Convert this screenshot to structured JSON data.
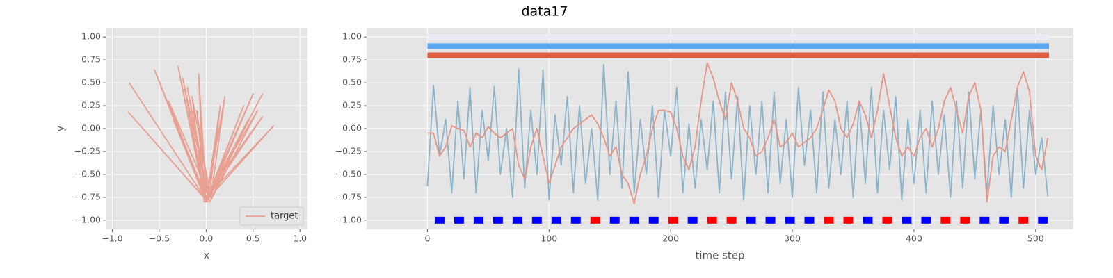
{
  "title": "data17",
  "chart_data": [
    {
      "type": "line",
      "xlabel": "x",
      "ylabel": "y",
      "legend": "lower right",
      "grid": true,
      "xlim": [
        -1.07,
        1.08
      ],
      "ylim": [
        -1.1,
        1.1
      ],
      "xticks": [
        {
          "value": -1.0,
          "label": "−1.0"
        },
        {
          "value": -0.5,
          "label": "−0.5"
        },
        {
          "value": 0.0,
          "label": "0.0"
        },
        {
          "value": 0.5,
          "label": "0.5"
        },
        {
          "value": 1.0,
          "label": "1.0"
        }
      ],
      "yticks": [
        {
          "value": 1.0,
          "label": "1.00"
        },
        {
          "value": 0.75,
          "label": "0.75"
        },
        {
          "value": 0.5,
          "label": "0.50"
        },
        {
          "value": 0.25,
          "label": "0.25"
        },
        {
          "value": 0.0,
          "label": "0.00"
        },
        {
          "value": -0.25,
          "label": "−0.25"
        },
        {
          "value": -0.5,
          "label": "−0.50"
        },
        {
          "value": -0.75,
          "label": "−0.75"
        },
        {
          "value": -1.0,
          "label": "−1.00"
        }
      ],
      "series": [
        {
          "name": "target",
          "color": "#e8a092",
          "style": "line",
          "x": [
            -0.82,
            0.0,
            -0.83,
            0.02,
            -0.55,
            -0.02,
            -0.3,
            0.0,
            -0.25,
            0.03,
            -0.2,
            0.0,
            -0.08,
            -0.02,
            -0.15,
            0.05,
            0.2,
            0.0,
            0.6,
            0.02,
            0.5,
            -0.01,
            0.72,
            0.0,
            0.55,
            0.04,
            0.45,
            0.0,
            0.6,
            0.02,
            -0.4,
            0.0,
            -0.1,
            0.03,
            0.15,
            0.0,
            -0.35,
            0.01,
            0.4,
            0.0
          ],
          "values": [
            0.5,
            -0.78,
            0.18,
            -0.8,
            0.64,
            -0.75,
            0.68,
            -0.8,
            0.55,
            -0.78,
            0.45,
            -0.7,
            0.6,
            -0.8,
            0.35,
            -0.75,
            0.35,
            -0.8,
            0.38,
            -0.78,
            0.38,
            -0.8,
            0.03,
            -0.75,
            0.2,
            -0.8,
            0.1,
            -0.78,
            0.13,
            -0.7,
            0.3,
            -0.8,
            0.2,
            -0.78,
            0.25,
            -0.8,
            0.1,
            -0.76,
            0.25,
            -0.8
          ]
        }
      ]
    },
    {
      "type": "line",
      "xlabel": "time step",
      "grid": true,
      "xlim": [
        -50,
        531
      ],
      "ylim": [
        -1.1,
        1.1
      ],
      "xticks": [
        0,
        100,
        200,
        300,
        400,
        500
      ],
      "yticks": [
        {
          "value": 1.0,
          "label": "1.00"
        },
        {
          "value": 0.75,
          "label": "0.75"
        },
        {
          "value": 0.5,
          "label": "0.50"
        },
        {
          "value": 0.25,
          "label": "0.25"
        },
        {
          "value": 0.0,
          "label": "0.00"
        },
        {
          "value": -0.25,
          "label": "−0.25"
        },
        {
          "value": -0.5,
          "label": "−0.50"
        },
        {
          "value": -0.75,
          "label": "−0.75"
        },
        {
          "value": -1.0,
          "label": "−1.00"
        }
      ],
      "x": [
        0,
        5,
        10,
        15,
        20,
        25,
        30,
        35,
        40,
        45,
        50,
        55,
        60,
        65,
        70,
        75,
        80,
        85,
        90,
        95,
        100,
        105,
        110,
        115,
        120,
        125,
        130,
        135,
        140,
        145,
        150,
        155,
        160,
        165,
        170,
        175,
        180,
        185,
        190,
        195,
        200,
        205,
        210,
        215,
        220,
        225,
        230,
        235,
        240,
        245,
        250,
        255,
        260,
        265,
        270,
        275,
        280,
        285,
        290,
        295,
        300,
        305,
        310,
        315,
        320,
        325,
        330,
        335,
        340,
        345,
        350,
        355,
        360,
        365,
        370,
        375,
        380,
        385,
        390,
        395,
        400,
        405,
        410,
        415,
        420,
        425,
        430,
        435,
        440,
        445,
        450,
        455,
        460,
        465,
        470,
        475,
        480,
        485,
        490,
        495,
        500,
        505,
        510
      ],
      "series": [
        {
          "color": "#ebebf5",
          "style": "band",
          "x": [
            0,
            511
          ],
          "values": [
            1.0,
            1.0
          ]
        },
        {
          "color": "#5ca8f0",
          "style": "band",
          "x": [
            0,
            511
          ],
          "values": [
            0.9,
            0.9
          ]
        },
        {
          "color": "#e05a3e",
          "style": "band",
          "x": [
            0,
            511
          ],
          "values": [
            0.8,
            0.8
          ]
        },
        {
          "color": "#8ab4cc",
          "style": "line",
          "values": [
            -0.63,
            0.47,
            -0.3,
            0.1,
            -0.7,
            0.3,
            -0.55,
            0.45,
            -0.7,
            0.2,
            -0.35,
            0.46,
            -0.5,
            0.0,
            -0.75,
            0.65,
            -0.65,
            0.2,
            -0.5,
            0.64,
            -0.78,
            0.15,
            -0.4,
            0.35,
            -0.7,
            0.25,
            -0.6,
            0.0,
            -0.78,
            0.7,
            -0.5,
            0.3,
            -0.65,
            0.62,
            -0.7,
            0.1,
            -0.5,
            0.25,
            -0.75,
            0.2,
            -0.3,
            0.45,
            -0.7,
            0.05,
            -0.65,
            0.1,
            -0.45,
            0.3,
            -0.7,
            0.4,
            -0.55,
            0.35,
            -0.78,
            0.25,
            -0.5,
            0.3,
            -0.7,
            0.4,
            -0.6,
            0.1,
            -0.75,
            0.45,
            -0.4,
            0.2,
            -0.7,
            0.4,
            -0.65,
            0.1,
            -0.5,
            0.3,
            -0.75,
            0.3,
            -0.6,
            0.45,
            -0.7,
            0.2,
            -0.45,
            0.35,
            -0.78,
            0.1,
            -0.6,
            0.2,
            -0.7,
            0.3,
            -0.5,
            0.15,
            -0.75,
            0.3,
            -0.65,
            0.4,
            -0.55,
            0.2,
            -0.7,
            0.25,
            -0.5,
            0.1,
            -0.75,
            0.45,
            -0.65,
            0.2,
            -0.5,
            -0.1,
            -0.74
          ]
        },
        {
          "color": "#e89484",
          "style": "line",
          "values": [
            -0.05,
            -0.05,
            -0.3,
            -0.2,
            0.03,
            0.0,
            -0.02,
            -0.2,
            -0.05,
            -0.1,
            0.02,
            -0.05,
            -0.1,
            -0.05,
            0.0,
            -0.4,
            -0.55,
            -0.2,
            0.0,
            -0.3,
            -0.6,
            -0.4,
            -0.2,
            -0.1,
            0.0,
            0.05,
            0.1,
            0.15,
            0.05,
            -0.1,
            -0.3,
            -0.2,
            -0.5,
            -0.6,
            -0.82,
            -0.5,
            -0.3,
            0.0,
            0.2,
            0.2,
            0.18,
            0.0,
            -0.3,
            -0.45,
            -0.2,
            0.3,
            0.72,
            0.55,
            0.3,
            0.1,
            0.5,
            0.3,
            0.0,
            -0.1,
            -0.3,
            -0.25,
            -0.1,
            0.1,
            -0.2,
            -0.15,
            -0.05,
            -0.2,
            -0.15,
            -0.1,
            0.0,
            0.2,
            0.42,
            0.3,
            0.0,
            -0.1,
            0.05,
            0.3,
            0.15,
            -0.1,
            0.2,
            0.6,
            0.25,
            -0.1,
            -0.3,
            -0.2,
            -0.3,
            -0.1,
            0.0,
            -0.2,
            0.0,
            0.3,
            0.45,
            0.2,
            -0.05,
            0.35,
            0.5,
            0.2,
            -0.8,
            -0.3,
            -0.2,
            -0.25,
            0.1,
            0.45,
            0.62,
            0.4,
            -0.3,
            -0.45,
            -0.1
          ]
        },
        {
          "style": "square",
          "x": [
            10,
            26,
            42,
            58,
            74,
            90,
            106,
            122,
            138,
            154,
            170,
            186,
            202,
            218,
            234,
            250,
            266,
            282,
            298,
            314,
            330,
            346,
            362,
            378,
            394,
            410,
            426,
            442,
            458,
            474,
            490,
            506
          ],
          "values": [
            -1,
            -1,
            -1,
            -1,
            -1,
            -1,
            -1,
            -1,
            -1,
            -1,
            -1,
            -1,
            -1,
            -1,
            -1,
            -1,
            -1,
            -1,
            -1,
            -1,
            -1,
            -1,
            -1,
            -1,
            -1,
            -1,
            -1,
            -1,
            -1,
            -1,
            -1,
            -1
          ],
          "colors": [
            "#0000ff",
            "#0000ff",
            "#0000ff",
            "#0000ff",
            "#0000ff",
            "#0000ff",
            "#0000ff",
            "#0000ff",
            "#ff0000",
            "#0000ff",
            "#0000ff",
            "#0000ff",
            "#ff0000",
            "#0000ff",
            "#ff0000",
            "#ff0000",
            "#0000ff",
            "#0000ff",
            "#0000ff",
            "#0000ff",
            "#ff0000",
            "#ff0000",
            "#0000ff",
            "#ff0000",
            "#0000ff",
            "#0000ff",
            "#ff0000",
            "#ff0000",
            "#0000ff",
            "#0000ff",
            "#ff0000",
            "#0000ff"
          ]
        }
      ]
    }
  ]
}
